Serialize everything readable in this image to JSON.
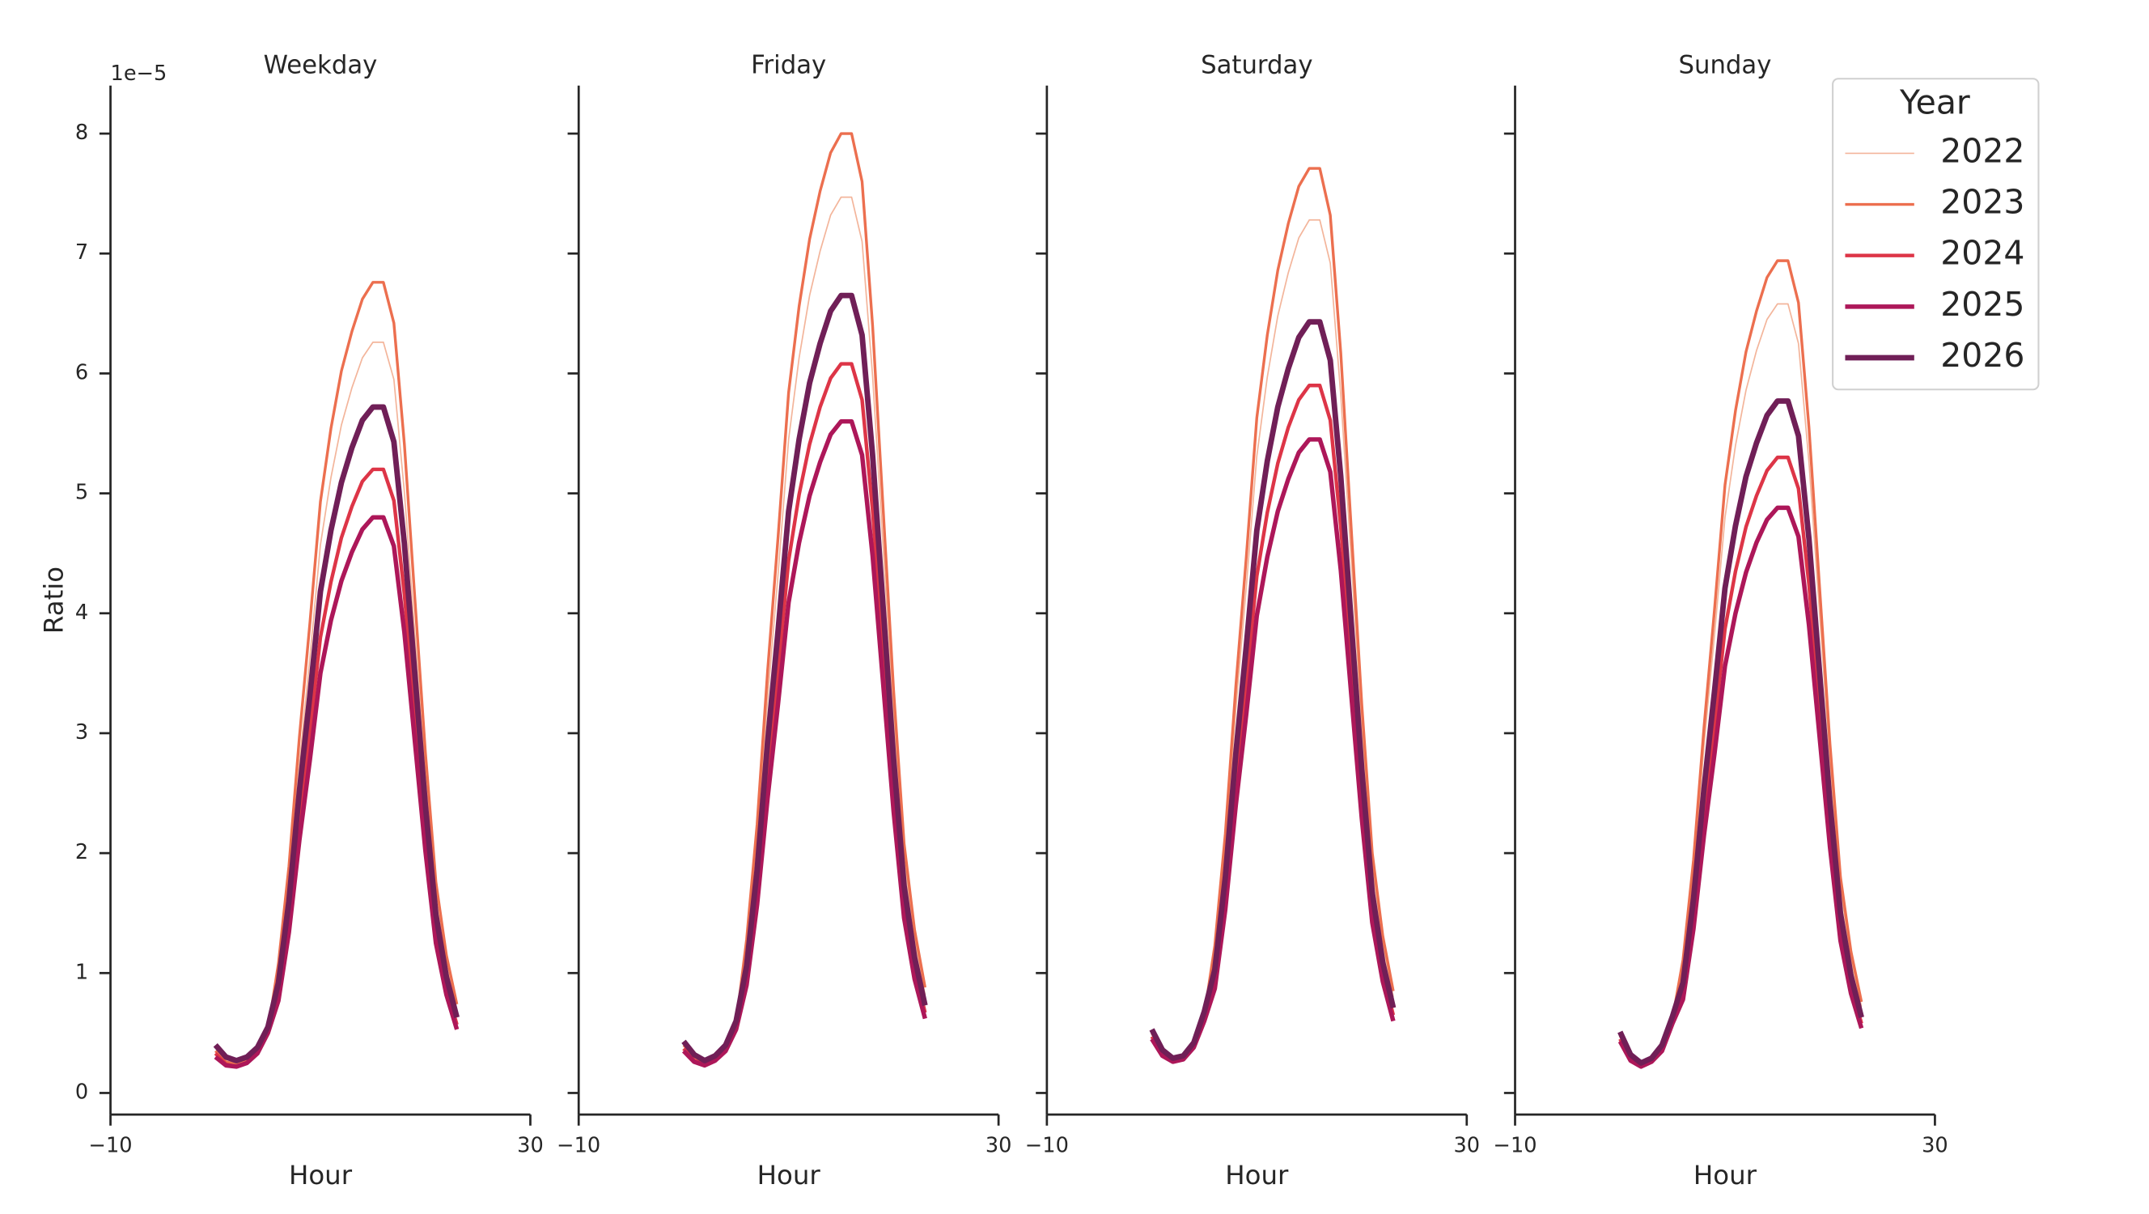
{
  "chart_data": [
    {
      "type": "line",
      "title": "Weekday",
      "x_label": "Hour",
      "y_label": "Ratio",
      "offset_text": "1e−5",
      "legend_title": "Year",
      "xlim": [
        -10,
        30
      ],
      "xticks": [
        {
          "value": -10,
          "label": "−10"
        },
        30
      ],
      "ylim": [
        -0.18,
        8.4
      ],
      "yticks": [
        0,
        1,
        2,
        3,
        4,
        5,
        6,
        7,
        8
      ],
      "x": [
        0,
        1,
        2,
        3,
        4,
        5,
        6,
        7,
        8,
        9,
        10,
        11,
        12,
        13,
        14,
        15,
        16,
        17,
        18,
        19,
        20,
        21,
        22,
        23
      ],
      "series": [
        {
          "name": "2022",
          "color": "#f3b59b",
          "linewidth": 1,
          "values": [
            0.35,
            0.26,
            0.24,
            0.27,
            0.35,
            0.52,
            1.0,
            1.75,
            2.75,
            3.63,
            4.57,
            5.13,
            5.57,
            5.88,
            6.13,
            6.26,
            6.26,
            5.95,
            5.01,
            3.82,
            2.63,
            1.63,
            1.06,
            0.69
          ]
        },
        {
          "name": "2023",
          "color": "#ec6f4f",
          "linewidth": 2,
          "values": [
            0.35,
            0.26,
            0.24,
            0.27,
            0.35,
            0.52,
            1.08,
            1.89,
            2.97,
            3.92,
            4.93,
            5.54,
            6.02,
            6.35,
            6.62,
            6.76,
            6.76,
            6.42,
            5.41,
            4.12,
            2.84,
            1.76,
            1.15,
            0.74
          ]
        },
        {
          "name": "2024",
          "color": "#dd3547",
          "linewidth": 2.6,
          "values": [
            0.33,
            0.24,
            0.22,
            0.25,
            0.33,
            0.5,
            0.83,
            1.46,
            2.29,
            3.02,
            3.8,
            4.26,
            4.63,
            4.89,
            5.1,
            5.2,
            5.2,
            4.94,
            4.16,
            3.17,
            2.18,
            1.35,
            0.88,
            0.57
          ]
        },
        {
          "name": "2025",
          "color": "#ad1759",
          "linewidth": 3.2,
          "values": [
            0.3,
            0.23,
            0.22,
            0.25,
            0.33,
            0.5,
            0.77,
            1.34,
            2.11,
            2.78,
            3.5,
            3.94,
            4.27,
            4.51,
            4.7,
            4.8,
            4.8,
            4.56,
            3.84,
            2.93,
            2.02,
            1.25,
            0.82,
            0.53
          ]
        },
        {
          "name": "2026",
          "color": "#701f57",
          "linewidth": 4,
          "values": [
            0.4,
            0.3,
            0.27,
            0.3,
            0.38,
            0.55,
            0.92,
            1.6,
            2.52,
            3.32,
            4.18,
            4.69,
            5.09,
            5.38,
            5.61,
            5.72,
            5.72,
            5.43,
            4.58,
            3.49,
            2.4,
            1.49,
            0.97,
            0.63
          ]
        }
      ]
    },
    {
      "type": "line",
      "title": "Friday",
      "x_label": "Hour",
      "xlim": [
        -10,
        30
      ],
      "xticks": [
        {
          "value": -10,
          "label": "−10"
        },
        30
      ],
      "ylim": [
        -0.18,
        8.4
      ],
      "yticks": [
        0,
        1,
        2,
        3,
        4,
        5,
        6,
        7,
        8
      ],
      "x": [
        0,
        1,
        2,
        3,
        4,
        5,
        6,
        7,
        8,
        9,
        10,
        11,
        12,
        13,
        14,
        15,
        16,
        17,
        18,
        19,
        20,
        21,
        22,
        23
      ],
      "series": [
        {
          "name": "2022",
          "color": "#f3b59b",
          "linewidth": 1,
          "values": [
            0.4,
            0.3,
            0.26,
            0.3,
            0.38,
            0.58,
            1.2,
            2.09,
            3.29,
            4.33,
            5.45,
            6.13,
            6.65,
            7.02,
            7.32,
            7.47,
            7.47,
            7.1,
            5.98,
            4.56,
            3.14,
            1.94,
            1.27,
            0.82
          ]
        },
        {
          "name": "2023",
          "color": "#ec6f4f",
          "linewidth": 2,
          "values": [
            0.4,
            0.3,
            0.26,
            0.3,
            0.38,
            0.58,
            1.28,
            2.24,
            3.52,
            4.64,
            5.84,
            6.56,
            7.12,
            7.52,
            7.84,
            8.0,
            8.0,
            7.6,
            6.4,
            4.88,
            3.36,
            2.08,
            1.36,
            0.88
          ]
        },
        {
          "name": "2024",
          "color": "#dd3547",
          "linewidth": 2.6,
          "values": [
            0.37,
            0.27,
            0.24,
            0.28,
            0.36,
            0.55,
            0.97,
            1.7,
            2.68,
            3.53,
            4.44,
            4.99,
            5.41,
            5.72,
            5.96,
            6.08,
            6.08,
            5.78,
            4.86,
            3.71,
            2.55,
            1.58,
            1.03,
            0.67
          ]
        },
        {
          "name": "2025",
          "color": "#ad1759",
          "linewidth": 3.2,
          "values": [
            0.35,
            0.26,
            0.23,
            0.27,
            0.35,
            0.53,
            0.9,
            1.57,
            2.46,
            3.25,
            4.09,
            4.59,
            4.98,
            5.26,
            5.49,
            5.6,
            5.6,
            5.32,
            4.48,
            3.42,
            2.35,
            1.46,
            0.95,
            0.62
          ]
        },
        {
          "name": "2026",
          "color": "#701f57",
          "linewidth": 4,
          "values": [
            0.43,
            0.32,
            0.27,
            0.31,
            0.4,
            0.6,
            1.06,
            1.86,
            2.93,
            3.86,
            4.85,
            5.45,
            5.92,
            6.25,
            6.52,
            6.65,
            6.65,
            6.32,
            5.32,
            4.06,
            2.79,
            1.73,
            1.13,
            0.73
          ]
        }
      ]
    },
    {
      "type": "line",
      "title": "Saturday",
      "x_label": "Hour",
      "xlim": [
        -10,
        30
      ],
      "xticks": [
        {
          "value": -10,
          "label": "−10"
        },
        30
      ],
      "ylim": [
        -0.18,
        8.4
      ],
      "yticks": [
        0,
        1,
        2,
        3,
        4,
        5,
        6,
        7,
        8
      ],
      "x": [
        0,
        1,
        2,
        3,
        4,
        5,
        6,
        7,
        8,
        9,
        10,
        11,
        12,
        13,
        14,
        15,
        16,
        17,
        18,
        19,
        20,
        21,
        22,
        23
      ],
      "series": [
        {
          "name": "2022",
          "color": "#f3b59b",
          "linewidth": 1,
          "values": [
            0.5,
            0.34,
            0.28,
            0.3,
            0.4,
            0.65,
            1.16,
            2.04,
            3.2,
            4.22,
            5.31,
            5.97,
            6.48,
            6.84,
            7.13,
            7.28,
            7.28,
            6.92,
            5.82,
            4.44,
            3.06,
            1.89,
            1.24,
            0.8
          ]
        },
        {
          "name": "2023",
          "color": "#ec6f4f",
          "linewidth": 2,
          "values": [
            0.5,
            0.34,
            0.28,
            0.3,
            0.4,
            0.65,
            1.23,
            2.16,
            3.39,
            4.47,
            5.63,
            6.32,
            6.86,
            7.25,
            7.56,
            7.71,
            7.71,
            7.32,
            6.17,
            4.7,
            3.24,
            2.0,
            1.31,
            0.85
          ]
        },
        {
          "name": "2024",
          "color": "#dd3547",
          "linewidth": 2.6,
          "values": [
            0.47,
            0.32,
            0.27,
            0.29,
            0.39,
            0.62,
            0.94,
            1.65,
            2.6,
            3.42,
            4.31,
            4.84,
            5.25,
            5.55,
            5.78,
            5.9,
            5.9,
            5.61,
            4.72,
            3.6,
            2.48,
            1.53,
            1.0,
            0.65
          ]
        },
        {
          "name": "2025",
          "color": "#ad1759",
          "linewidth": 3.2,
          "values": [
            0.45,
            0.31,
            0.26,
            0.28,
            0.38,
            0.6,
            0.87,
            1.53,
            2.4,
            3.16,
            3.98,
            4.47,
            4.85,
            5.12,
            5.34,
            5.45,
            5.45,
            5.18,
            4.36,
            3.32,
            2.29,
            1.42,
            0.93,
            0.6
          ]
        },
        {
          "name": "2026",
          "color": "#701f57",
          "linewidth": 4,
          "values": [
            0.53,
            0.36,
            0.29,
            0.31,
            0.42,
            0.68,
            1.03,
            1.8,
            2.83,
            3.73,
            4.69,
            5.27,
            5.72,
            6.04,
            6.3,
            6.43,
            6.43,
            6.11,
            5.14,
            3.92,
            2.7,
            1.67,
            1.09,
            0.71
          ]
        }
      ]
    },
    {
      "type": "line",
      "title": "Sunday",
      "x_label": "Hour",
      "xlim": [
        -10,
        30
      ],
      "xticks": [
        {
          "value": -10,
          "label": "−10"
        },
        30
      ],
      "ylim": [
        -0.18,
        8.4
      ],
      "yticks": [
        0,
        1,
        2,
        3,
        4,
        5,
        6,
        7,
        8
      ],
      "x": [
        0,
        1,
        2,
        3,
        4,
        5,
        6,
        7,
        8,
        9,
        10,
        11,
        12,
        13,
        14,
        15,
        16,
        17,
        18,
        19,
        20,
        21,
        22,
        23
      ],
      "series": [
        {
          "name": "2022",
          "color": "#f3b59b",
          "linewidth": 1,
          "values": [
            0.48,
            0.3,
            0.24,
            0.28,
            0.38,
            0.62,
            1.05,
            1.84,
            2.9,
            3.82,
            4.8,
            5.4,
            5.86,
            6.19,
            6.45,
            6.58,
            6.58,
            6.25,
            5.26,
            4.01,
            2.76,
            1.71,
            1.12,
            0.72
          ]
        },
        {
          "name": "2023",
          "color": "#ec6f4f",
          "linewidth": 2,
          "values": [
            0.48,
            0.3,
            0.24,
            0.28,
            0.38,
            0.62,
            1.11,
            1.94,
            3.05,
            4.03,
            5.07,
            5.69,
            6.18,
            6.52,
            6.8,
            6.94,
            6.94,
            6.59,
            5.55,
            4.23,
            2.91,
            1.8,
            1.18,
            0.76
          ]
        },
        {
          "name": "2024",
          "color": "#dd3547",
          "linewidth": 2.6,
          "values": [
            0.45,
            0.28,
            0.23,
            0.27,
            0.36,
            0.6,
            0.85,
            1.48,
            2.33,
            3.07,
            3.87,
            4.35,
            4.72,
            4.98,
            5.19,
            5.3,
            5.3,
            5.04,
            4.24,
            3.23,
            2.23,
            1.38,
            0.9,
            0.58
          ]
        },
        {
          "name": "2025",
          "color": "#ad1759",
          "linewidth": 3.2,
          "values": [
            0.43,
            0.27,
            0.22,
            0.26,
            0.35,
            0.58,
            0.78,
            1.37,
            2.15,
            2.83,
            3.56,
            4.0,
            4.34,
            4.59,
            4.78,
            4.88,
            4.88,
            4.64,
            3.9,
            2.98,
            2.05,
            1.27,
            0.83,
            0.54
          ]
        },
        {
          "name": "2026",
          "color": "#701f57",
          "linewidth": 4,
          "values": [
            0.51,
            0.32,
            0.25,
            0.29,
            0.4,
            0.64,
            0.92,
            1.62,
            2.54,
            3.35,
            4.21,
            4.73,
            5.14,
            5.42,
            5.65,
            5.77,
            5.77,
            5.48,
            4.62,
            3.52,
            2.42,
            1.5,
            0.98,
            0.63
          ]
        }
      ]
    }
  ]
}
